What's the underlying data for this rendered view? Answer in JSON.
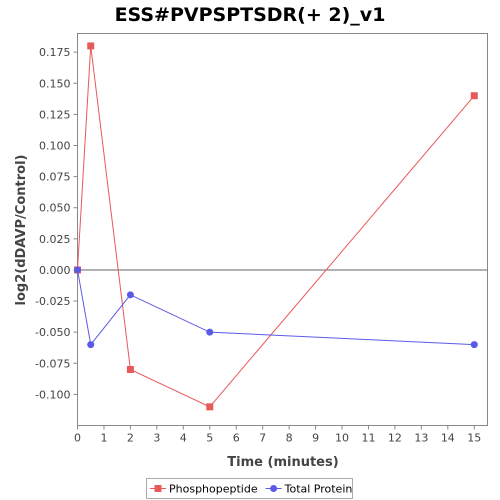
{
  "chart_data": {
    "type": "line",
    "title": "ESS#PVPSPTSDR(+ 2)_v1",
    "xlabel": "Time (minutes)",
    "ylabel": "log2(dDAVP/Control)",
    "xlim": [
      0,
      15.5
    ],
    "ylim": [
      -0.125,
      0.19
    ],
    "x_ticks": [
      0,
      1,
      2,
      3,
      4,
      5,
      6,
      7,
      8,
      9,
      10,
      11,
      12,
      13,
      14,
      15
    ],
    "y_ticks": [
      -0.1,
      -0.075,
      -0.05,
      -0.025,
      0.0,
      0.025,
      0.05,
      0.075,
      0.1,
      0.125,
      0.15,
      0.175
    ],
    "y_tick_labels": [
      "-0.100",
      "-0.075",
      "-0.050",
      "-0.025",
      "0.000",
      "0.025",
      "0.050",
      "0.075",
      "0.100",
      "0.125",
      "0.150",
      "0.175"
    ],
    "zero_line": true,
    "grid": false,
    "legend_position": "bottom",
    "series": [
      {
        "name": "Phosphopeptide",
        "color": "#e8595a",
        "marker": "square",
        "x": [
          0,
          0.5,
          2,
          5,
          15
        ],
        "y": [
          0.0,
          0.18,
          -0.08,
          -0.11,
          0.14
        ]
      },
      {
        "name": "Total Protein",
        "color": "#5a5ae8",
        "marker": "circle",
        "x": [
          0,
          0.5,
          2,
          5,
          15
        ],
        "y": [
          0.0,
          -0.06,
          -0.02,
          -0.05,
          -0.06
        ]
      }
    ]
  }
}
